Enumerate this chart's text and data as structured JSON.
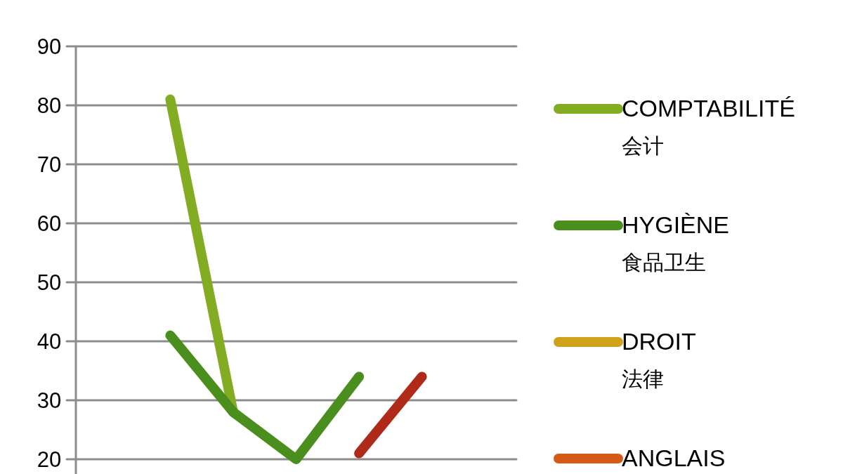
{
  "chart_data": {
    "type": "line",
    "categories": [
      null,
      null,
      null,
      null,
      null,
      null,
      null
    ],
    "series": [
      {
        "name": "COMPTABILITÉ\n会计",
        "color": "#82ad22",
        "values": [
          null,
          81,
          28,
          null,
          null,
          null,
          null
        ]
      },
      {
        "name": "HYGIÈNE\n食品卫生",
        "color": "#4a8f1e",
        "values": [
          null,
          41,
          28,
          20,
          34,
          null,
          null
        ]
      },
      {
        "name": "DROIT\n法律",
        "color": "#cfa21c",
        "values": [
          null,
          null,
          null,
          null,
          null,
          null,
          null
        ]
      },
      {
        "name": "ANGLAIS",
        "color": "#d45a18",
        "values": [
          null,
          null,
          null,
          null,
          null,
          null,
          null
        ]
      },
      {
        "color": "#b02a1a",
        "values": [
          null,
          null,
          null,
          null,
          21,
          34,
          null
        ]
      }
    ],
    "ylim": [
      0,
      90
    ],
    "yticks": [
      20,
      30,
      40,
      50,
      60,
      70,
      80,
      90
    ],
    "grid": "y",
    "legend": "right",
    "marker": "none",
    "line_style": "solid"
  }
}
